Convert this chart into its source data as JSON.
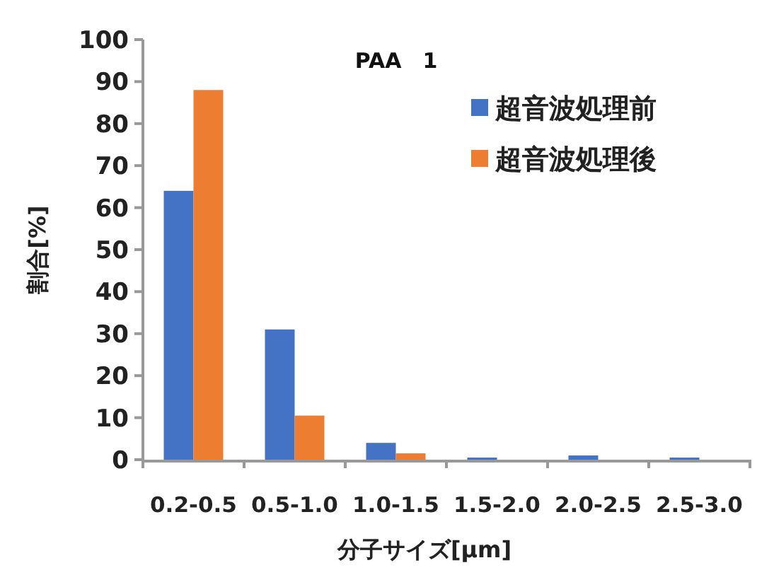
{
  "chart_data": {
    "type": "bar",
    "title": "PAA　1",
    "xlabel": "分子サイズ[μm]",
    "ylabel": "割合[%]",
    "categories": [
      "0.2-0.5",
      "0.5-1.0",
      "1.0-1.5",
      "1.5-2.0",
      "2.0-2.5",
      "2.5-3.0"
    ],
    "series": [
      {
        "name": "超音波処理前",
        "color": "#4472c4",
        "values": [
          64,
          31,
          4,
          0.5,
          1,
          0.5
        ]
      },
      {
        "name": "超音波処理後",
        "color": "#ed7d31",
        "values": [
          88,
          10.5,
          1.5,
          0,
          0,
          0
        ]
      }
    ],
    "ylim": [
      0,
      100
    ],
    "yticks": [
      0,
      10,
      20,
      30,
      40,
      50,
      60,
      70,
      80,
      90,
      100
    ],
    "grid": false,
    "legend": "top right"
  }
}
